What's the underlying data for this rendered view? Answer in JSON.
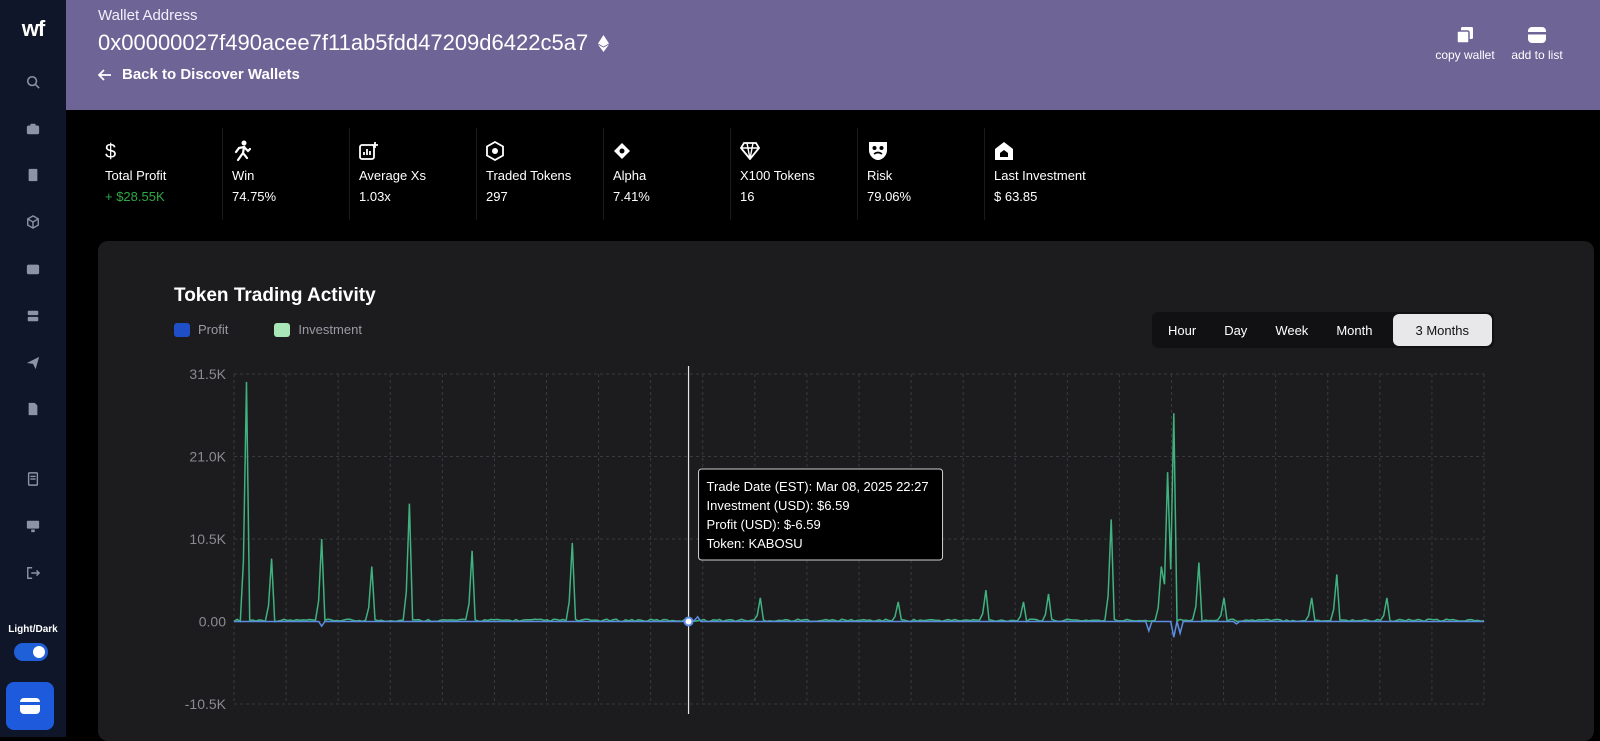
{
  "sidebar": {
    "logo": "wf",
    "icons": [
      "search-icon",
      "briefcase-icon",
      "book-icon",
      "cube-icon",
      "wallet-icon",
      "stack-icon",
      "send-icon",
      "document-icon",
      "receipt-icon",
      "monitor-icon",
      "logout-icon"
    ],
    "theme_label": "Light/Dark",
    "theme_dark_on": true
  },
  "header": {
    "label": "Wallet Address",
    "address": "0x00000027f490acee7f11ab5fdd47209d6422c5a7",
    "back_label": "Back to Discover Wallets",
    "copy_label": "copy wallet",
    "add_label": "add to list"
  },
  "stats": [
    {
      "icon": "dollar-icon",
      "label": "Total Profit",
      "value": "+ $28.55K",
      "positive": true
    },
    {
      "icon": "runner-icon",
      "label": "Win",
      "value": "74.75%"
    },
    {
      "icon": "chart-plus-icon",
      "label": "Average Xs",
      "value": "1.03x"
    },
    {
      "icon": "token-icon",
      "label": "Traded Tokens",
      "value": "297"
    },
    {
      "icon": "diamond-arrow-icon",
      "label": "Alpha",
      "value": "7.41%"
    },
    {
      "icon": "gem-icon",
      "label": "X100 Tokens",
      "value": "16"
    },
    {
      "icon": "mask-icon",
      "label": "Risk",
      "value": "79.06%"
    },
    {
      "icon": "home-icon",
      "label": "Last Investment",
      "value": "$ 63.85"
    }
  ],
  "chart": {
    "title": "Token Trading Activity",
    "legend": [
      {
        "name": "Profit",
        "color": "#1e4fc9"
      },
      {
        "name": "Investment",
        "color": "#a8e6b8"
      }
    ],
    "ranges": [
      "Hour",
      "Day",
      "Week",
      "Month",
      "3 Months"
    ],
    "active_range": "3 Months",
    "tooltip": {
      "line1": "Trade Date (EST): Mar 08, 2025 22:27",
      "line2": "Investment (USD): $6.59",
      "line3": "Profit (USD): $-6.59",
      "line4": "Token: KABOSU"
    }
  },
  "chart_data": {
    "type": "line",
    "title": "Token Trading Activity",
    "ylim": [
      -10500,
      31500
    ],
    "y_ticks": [
      "31.5K",
      "21.0K",
      "10.5K",
      "0.00",
      "-10.5K"
    ],
    "y_tick_values": [
      31500,
      21000,
      10500,
      0,
      -10500
    ],
    "grid": true,
    "legend_position": "top-left",
    "n_points": 100,
    "series": [
      {
        "name": "Investment",
        "color": "#3fb27f",
        "spikes": [
          [
            1,
            30500
          ],
          [
            3,
            8000
          ],
          [
            7,
            10500
          ],
          [
            11,
            7000
          ],
          [
            14,
            15000
          ],
          [
            19,
            9000
          ],
          [
            27,
            10000
          ],
          [
            42,
            3000
          ],
          [
            53,
            2500
          ],
          [
            60,
            4000
          ],
          [
            63,
            2500
          ],
          [
            65,
            3500
          ],
          [
            70,
            13000
          ],
          [
            74,
            7000
          ],
          [
            74.5,
            19000
          ],
          [
            75,
            26500
          ],
          [
            77,
            7500
          ],
          [
            79,
            3000
          ],
          [
            86,
            3000
          ],
          [
            88,
            6000
          ],
          [
            92,
            3000
          ]
        ],
        "baseline_noise": 300
      },
      {
        "name": "Profit",
        "color": "#5c8de0",
        "spikes": [
          [
            7,
            -600
          ],
          [
            37,
            600
          ],
          [
            73,
            -1200
          ],
          [
            75,
            -2000
          ],
          [
            75.5,
            -1500
          ],
          [
            80,
            -300
          ]
        ]
      }
    ],
    "highlight_x": 36
  }
}
